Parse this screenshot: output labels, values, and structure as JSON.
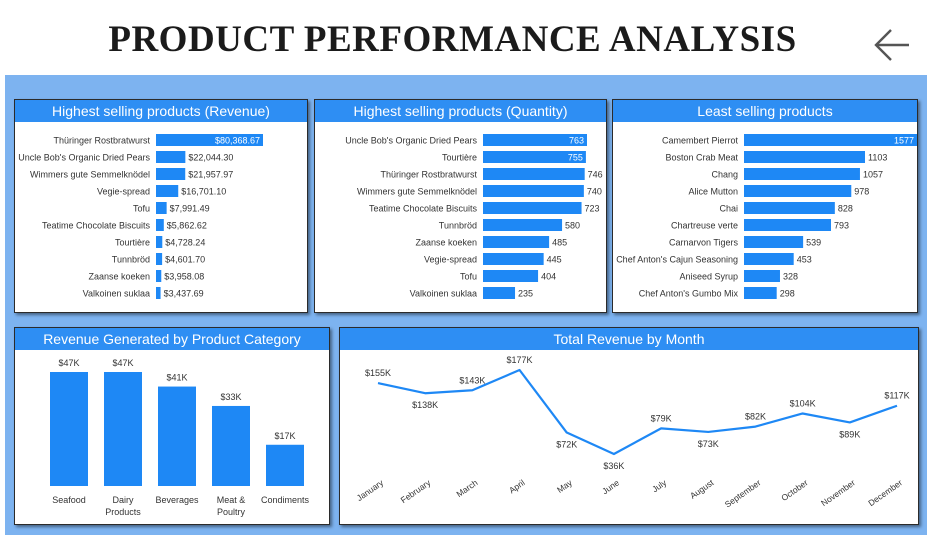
{
  "title": "PRODUCT PERFORMANCE ANALYSIS",
  "icons": {
    "back": "arrow-left-icon"
  },
  "colors": {
    "accent": "#2e8ef3",
    "bar": "#1e88f5",
    "panel_bg": "#7db3f0"
  },
  "chart_data": [
    {
      "id": "revenue",
      "type": "bar",
      "orientation": "horizontal",
      "title": "Highest selling products (Revenue)",
      "categories": [
        "Thüringer Rostbratwurst",
        "Uncle Bob's Organic Dried Pears",
        "Wimmers gute Semmelknödel",
        "Vegie-spread",
        "Tofu",
        "Teatime Chocolate Biscuits",
        "Tourtière",
        "Tunnbröd",
        "Zaanse koeken",
        "Valkoinen suklaa"
      ],
      "values": [
        80368.67,
        22044.3,
        21957.97,
        16701.1,
        7991.49,
        5862.62,
        4728.24,
        4601.7,
        3958.08,
        3437.69
      ],
      "labels": [
        "$80,368.67",
        "$22,044.30",
        "$21,957.97",
        "$16,701.10",
        "$7,991.49",
        "$5,862.62",
        "$4,728.24",
        "$4,601.70",
        "$3,958.08",
        "$3,437.69"
      ]
    },
    {
      "id": "quantity",
      "type": "bar",
      "orientation": "horizontal",
      "title": "Highest selling products (Quantity)",
      "categories": [
        "Uncle Bob's Organic Dried Pears",
        "Tourtière",
        "Thüringer Rostbratwurst",
        "Wimmers gute Semmelknödel",
        "Teatime Chocolate Biscuits",
        "Tunnbröd",
        "Zaanse koeken",
        "Vegie-spread",
        "Tofu",
        "Valkoinen suklaa"
      ],
      "values": [
        763,
        755,
        746,
        740,
        723,
        580,
        485,
        445,
        404,
        235
      ],
      "labels": [
        "763",
        "755",
        "746",
        "740",
        "723",
        "580",
        "485",
        "445",
        "404",
        "235"
      ]
    },
    {
      "id": "least",
      "type": "bar",
      "orientation": "horizontal",
      "title": "Least selling products",
      "categories": [
        "Camembert Pierrot",
        "Boston Crab Meat",
        "Chang",
        "Alice Mutton",
        "Chai",
        "Chartreuse verte",
        "Carnarvon Tigers",
        "Chef Anton's Cajun Seasoning",
        "Aniseed Syrup",
        "Chef Anton's Gumbo Mix"
      ],
      "values": [
        1577,
        1103,
        1057,
        978,
        828,
        793,
        539,
        453,
        328,
        298
      ],
      "labels": [
        "1577",
        "1103",
        "1057",
        "978",
        "828",
        "793",
        "539",
        "453",
        "328",
        "298"
      ]
    },
    {
      "id": "category",
      "type": "bar",
      "orientation": "vertical",
      "title": "Revenue Generated by Product Category",
      "categories": [
        "Seafood",
        "Dairy Products",
        "Beverages",
        "Meat & Poultry",
        "Condiments"
      ],
      "values": [
        47,
        47,
        41,
        33,
        17
      ],
      "labels": [
        "$47K",
        "$47K",
        "$41K",
        "$33K",
        "$17K"
      ],
      "value_unit": "K USD"
    },
    {
      "id": "monthly",
      "type": "line",
      "title": "Total Revenue by Month",
      "x": [
        "January",
        "February",
        "March",
        "April",
        "May",
        "June",
        "July",
        "August",
        "September",
        "October",
        "November",
        "December"
      ],
      "values": [
        155,
        138,
        143,
        177,
        72,
        36,
        79,
        73,
        82,
        104,
        89,
        117
      ],
      "labels": [
        "$155K",
        "$138K",
        "$143K",
        "$177K",
        "$72K",
        "$36K",
        "$79K",
        "$73K",
        "$82K",
        "$104K",
        "$89K",
        "$117K"
      ],
      "value_unit": "K USD"
    }
  ]
}
